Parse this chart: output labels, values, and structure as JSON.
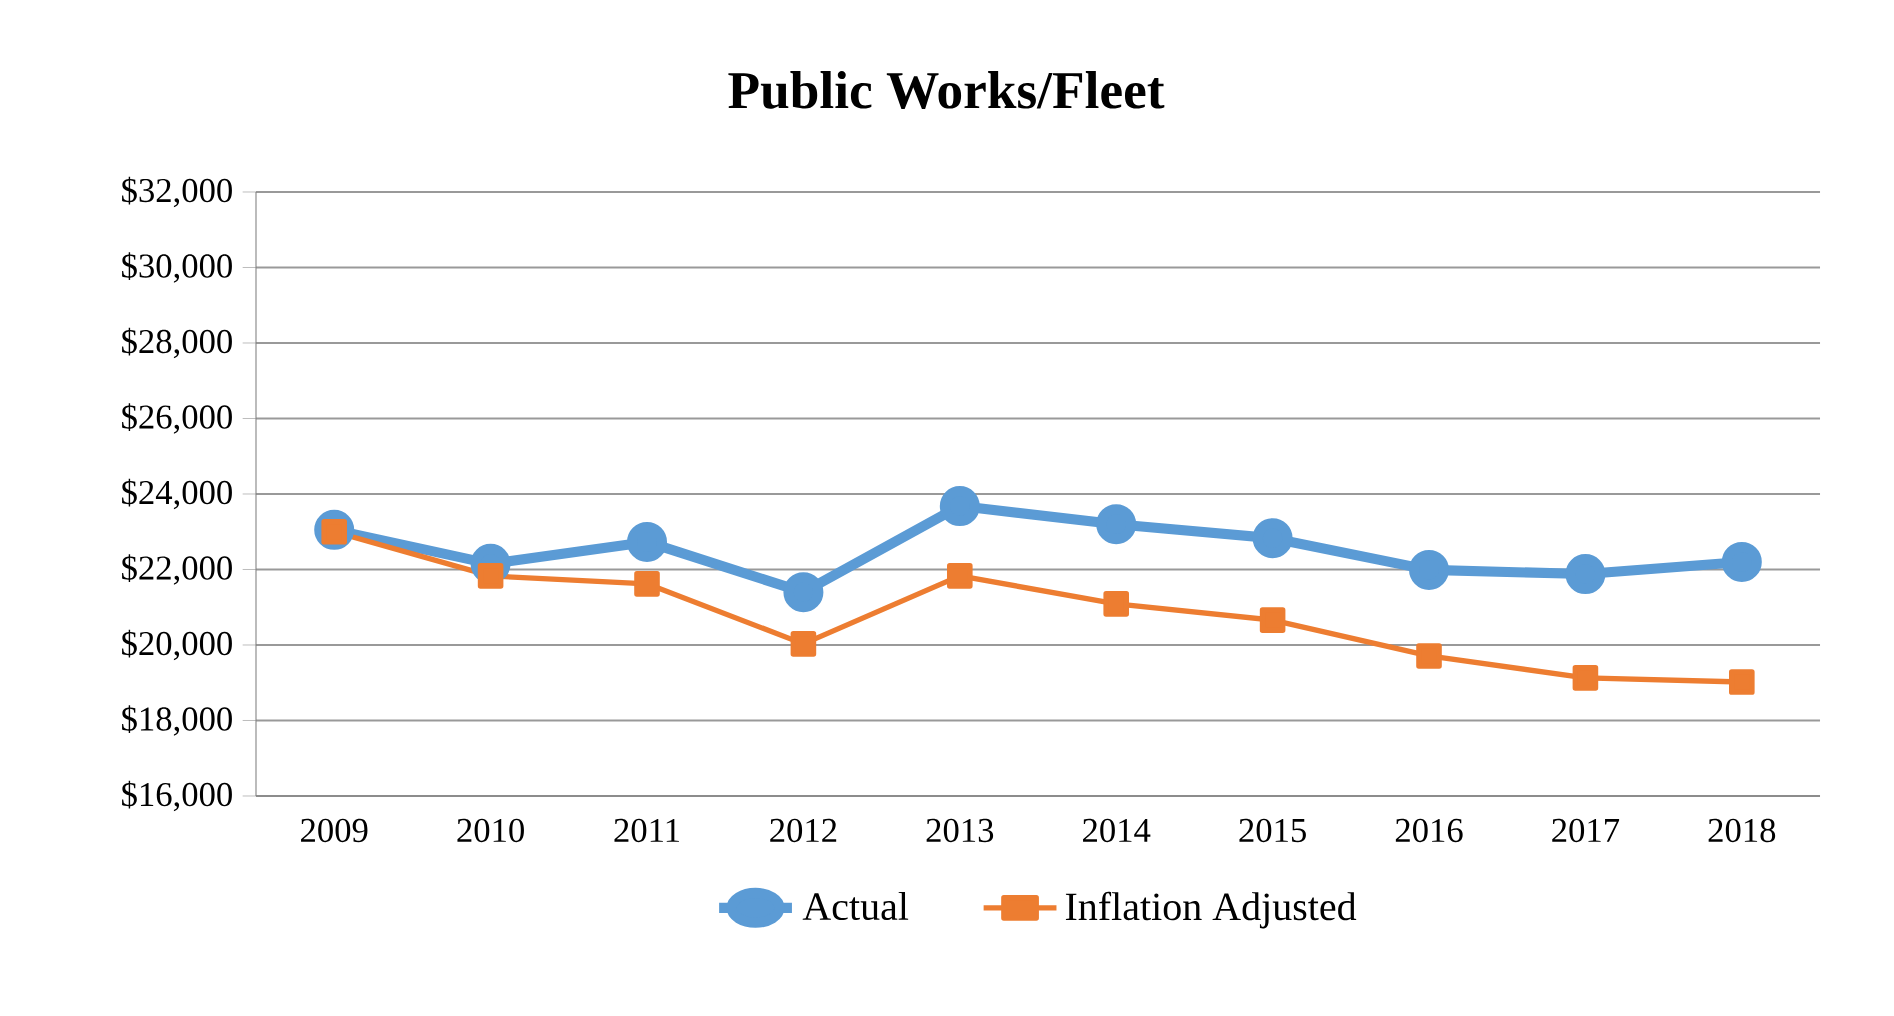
{
  "chart_data": {
    "type": "line",
    "title": "Public Works/Fleet",
    "categories": [
      "2009",
      "2010",
      "2011",
      "2012",
      "2013",
      "2014",
      "2015",
      "2016",
      "2017",
      "2018"
    ],
    "series": [
      {
        "name": "Actual",
        "color": "#5b9bd5",
        "marker": "circle",
        "values": [
          23050,
          22150,
          22730,
          21400,
          23680,
          23200,
          22830,
          21990,
          21880,
          22200
        ]
      },
      {
        "name": "Inflation Adjusted",
        "color": "#ed7d31",
        "marker": "square",
        "values": [
          23000,
          21830,
          21620,
          20030,
          21830,
          21090,
          20660,
          19710,
          19130,
          19020
        ]
      }
    ],
    "ylim": [
      16000,
      32000
    ],
    "yticks": [
      {
        "value": 16000,
        "label": "$16,000"
      },
      {
        "value": 18000,
        "label": "$18,000"
      },
      {
        "value": 20000,
        "label": "$20,000"
      },
      {
        "value": 22000,
        "label": "$22,000"
      },
      {
        "value": 24000,
        "label": "$24,000"
      },
      {
        "value": 26000,
        "label": "$26,000"
      },
      {
        "value": 28000,
        "label": "$28,000"
      },
      {
        "value": 30000,
        "label": "$30,000"
      },
      {
        "value": 32000,
        "label": "$32,000"
      }
    ],
    "grid": "y",
    "legend": "bottom",
    "line_style": "solid"
  }
}
